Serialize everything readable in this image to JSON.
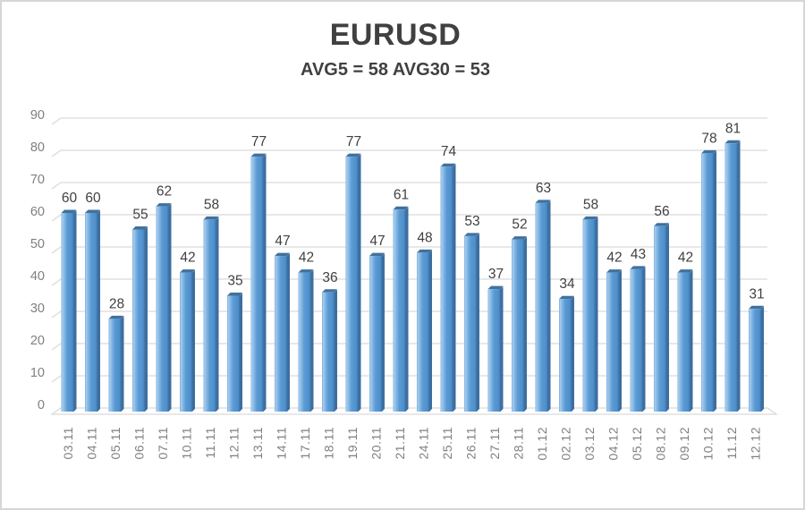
{
  "window": {
    "background": "#ffffff",
    "border_color": "#d6d6d6"
  },
  "header": {
    "title": "EURUSD",
    "subtitle": "AVG5 = 58 AVG30 = 53"
  },
  "chart_data": {
    "type": "bar",
    "style": "3d-column",
    "title": "EURUSD",
    "subtitle": "AVG5 = 58 AVG30 = 53",
    "categories": [
      "03.11",
      "04.11",
      "05.11",
      "06.11",
      "07.11",
      "10.11",
      "11.11",
      "12.11",
      "13.11",
      "14.11",
      "17.11",
      "18.11",
      "19.11",
      "20.11",
      "21.11",
      "24.11",
      "25.11",
      "26.11",
      "27.11",
      "28.11",
      "01.12",
      "02.12",
      "03.12",
      "04.12",
      "05.12",
      "08.12",
      "09.12",
      "10.12",
      "11.12",
      "12.12"
    ],
    "values": [
      60,
      60,
      28,
      55,
      62,
      42,
      58,
      35,
      77,
      47,
      42,
      36,
      77,
      47,
      61,
      48,
      74,
      53,
      37,
      52,
      63,
      34,
      58,
      42,
      43,
      56,
      42,
      78,
      81,
      31
    ],
    "avg5": 58,
    "avg30": 53,
    "data_labels_shown": true,
    "xlabel": "",
    "ylabel": "",
    "ylim": [
      0,
      90
    ],
    "yticks": [
      0,
      10,
      20,
      30,
      40,
      50,
      60,
      70,
      80,
      90
    ],
    "grid": "horizontal",
    "legend": "none",
    "colors": {
      "bar_front": "#5b9bd5",
      "bar_highlight": "#a9cdee",
      "bar_side": "#41719c",
      "gridline": "#d9d9d9",
      "axis_labels": "#7f7f7f",
      "value_labels": "#404040",
      "title_text": "#404040"
    }
  }
}
